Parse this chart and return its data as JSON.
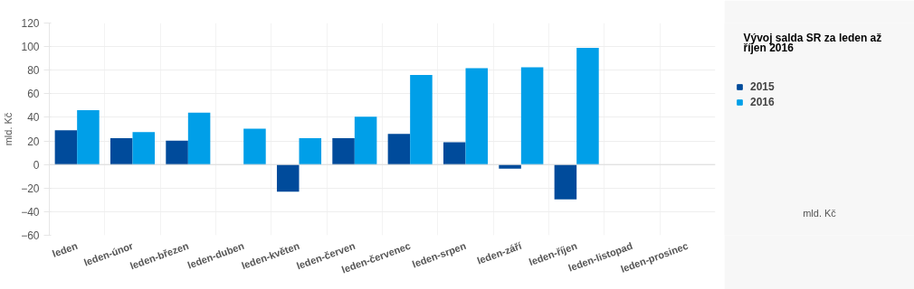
{
  "chart_data": {
    "type": "bar",
    "title": "Vývoj salda SR za leden až říjen 2016",
    "ylabel": "mld. Kč",
    "categories": [
      "leden",
      "leden-únor",
      "leden-březen",
      "leden-duben",
      "leden-květen",
      "leden-červen",
      "leden-červenec",
      "leden-srpen",
      "leden-září",
      "leden-říjen",
      "leden-listopad",
      "leden-prosinec"
    ],
    "series": [
      {
        "name": "2015",
        "color": "#004b9b",
        "values": [
          29,
          22.4,
          20.2,
          null,
          -23,
          22.4,
          26,
          18.8,
          -3.6,
          -29.6,
          null,
          null
        ]
      },
      {
        "name": "2016",
        "color": "#009fe8",
        "values": [
          46,
          27.5,
          44,
          30.4,
          22.4,
          40.5,
          76,
          81.7,
          82.4,
          99,
          null,
          null
        ]
      }
    ],
    "ylim": [
      -60,
      120
    ],
    "yticks": [
      -60,
      -40,
      -20,
      0,
      20,
      40,
      60,
      80,
      100,
      120
    ],
    "grid": true,
    "legend": "right",
    "annotations": [
      "mld. Kč"
    ]
  }
}
